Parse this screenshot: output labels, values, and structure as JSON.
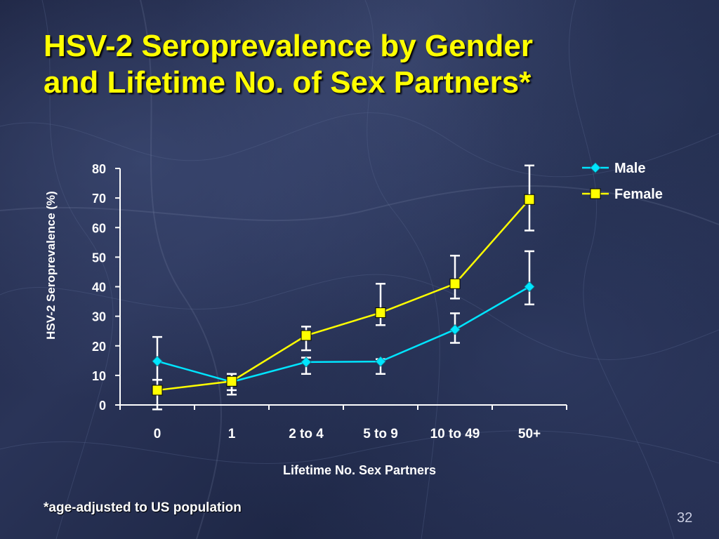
{
  "slide": {
    "title_line1": "HSV-2 Seroprevalence by Gender",
    "title_line2": "and Lifetime No. of Sex Partners*",
    "footnote": "*age-adjusted to US population",
    "page_number": "32"
  },
  "colors": {
    "title": "#ffff00",
    "male": "#00e5ff",
    "female": "#ffff00",
    "axis": "#ffffff",
    "background": "#1e2746"
  },
  "chart_data": {
    "type": "line",
    "title": "",
    "xlabel": "Lifetime No. Sex Partners",
    "ylabel": "HSV-2 Seroprevalence  (%)",
    "categories": [
      "0",
      "1",
      "2 to 4",
      "5 to 9",
      "10 to 49",
      "50+"
    ],
    "ylim": [
      0,
      80
    ],
    "yticks": [
      0,
      10,
      20,
      30,
      40,
      50,
      60,
      70,
      80
    ],
    "grid": false,
    "legend_position": "top-right",
    "series": [
      {
        "name": "Male",
        "marker": "diamond",
        "values": [
          14.8,
          7.8,
          14.5,
          14.7,
          25.5,
          40
        ],
        "error_low": [
          8.5,
          5,
          10.5,
          10.5,
          21,
          34
        ],
        "error_high": [
          23,
          10.5,
          16,
          15.5,
          31,
          52
        ]
      },
      {
        "name": "Female",
        "marker": "square",
        "values": [
          5,
          8,
          23.5,
          31.2,
          41,
          69.5
        ],
        "error_low": [
          -1.5,
          3.5,
          18.5,
          27,
          36,
          59
        ],
        "error_high": [
          8.5,
          10.5,
          26.5,
          41,
          50.5,
          81
        ]
      }
    ]
  }
}
